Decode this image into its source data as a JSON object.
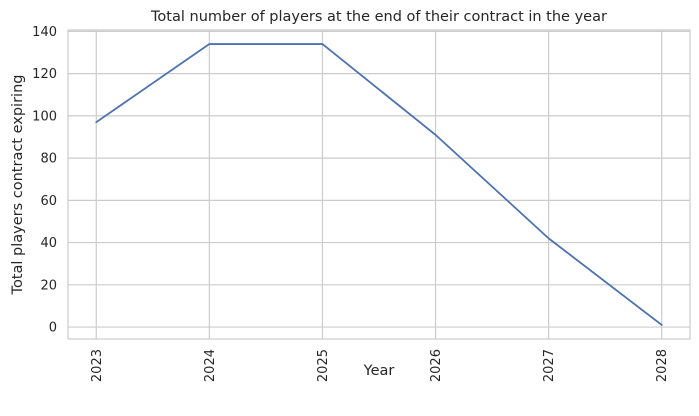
{
  "chart_data": {
    "type": "line",
    "title": "Total number of players at the end of their contract in the year",
    "xlabel": "Year",
    "ylabel": "Total players contract expiring",
    "x": [
      2023,
      2024,
      2025,
      2026,
      2027,
      2028
    ],
    "x_tick_labels": [
      "2023",
      "2024",
      "2025",
      "2026",
      "2027",
      "2028"
    ],
    "y_ticks": [
      0,
      20,
      40,
      60,
      80,
      100,
      120,
      140
    ],
    "y_tick_labels": [
      "0",
      "20",
      "40",
      "60",
      "80",
      "100",
      "120",
      "140"
    ],
    "series": [
      {
        "values": [
          97,
          134,
          134,
          91,
          42,
          1
        ]
      }
    ],
    "xlim": [
      2022.75,
      2028.25
    ],
    "ylim": [
      -5.65,
      140.65
    ],
    "grid": true,
    "colors": {
      "line": "#4c72b0",
      "grid": "#cccccc",
      "spine": "#cccccc"
    }
  }
}
